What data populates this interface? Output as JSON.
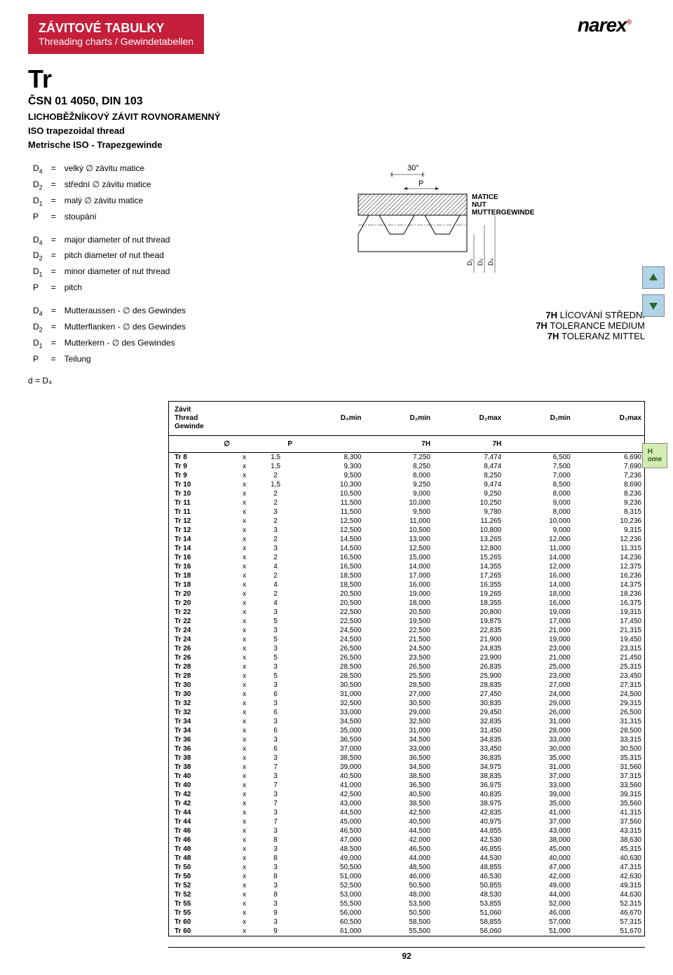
{
  "header": {
    "title1": "ZÁVITOVÉ TABULKY",
    "title2": "Threading charts / Gewindetabellen"
  },
  "logo": "narex",
  "tr": {
    "big": "Tr",
    "std": "ČSN 01 4050, DIN 103",
    "d1": "LICHOBĚŽNÍKOVÝ ZÁVIT ROVNORAMENNÝ",
    "d2": "ISO trapezoidal thread",
    "d3": "Metrische ISO - Trapezgewinde"
  },
  "defs": {
    "cz": [
      [
        "D",
        "4",
        "=",
        "velký ∅ závitu matice"
      ],
      [
        "D",
        "2",
        "=",
        "střední ∅ závitu matice"
      ],
      [
        "D",
        "1",
        "=",
        "malý ∅ závitu matice"
      ],
      [
        "P",
        "",
        "=",
        "stoupání"
      ]
    ],
    "en": [
      [
        "D",
        "4",
        "=",
        "major diameter of nut thread"
      ],
      [
        "D",
        "2",
        "=",
        "pitch diameter of nut thead"
      ],
      [
        "D",
        "1",
        "=",
        "minor diameter of nut thread"
      ],
      [
        "P",
        "",
        "=",
        "pitch"
      ]
    ],
    "de": [
      [
        "D",
        "4",
        "=",
        "Mutteraussen - ∅ des Gewindes"
      ],
      [
        "D",
        "2",
        "=",
        "Mutterflanken - ∅ des Gewindes"
      ],
      [
        "D",
        "1",
        "=",
        "Mutterkern - ∅ des Gewindes"
      ],
      [
        "P",
        "",
        "=",
        "Teilung"
      ]
    ],
    "last": "d = D₄"
  },
  "diag": {
    "angle": "30°",
    "pitch": "P",
    "l1": "MATICE",
    "l2": "NUT",
    "l3": "MUTTERGEWINDE",
    "dims": [
      "D₁",
      "D₂",
      "D₄"
    ]
  },
  "tol": {
    "l1": "7H LÍCOVÁNÍ STŘEDNÍ",
    "l2": "7H TOLERANCE MEDIUM",
    "l3": "7H TOLERANZ MITTEL"
  },
  "table": {
    "h1": "Závit\nThread\nGewinde",
    "cols": [
      "D₄min",
      "D₂min",
      "D₂max",
      "D₁min",
      "D₁max"
    ],
    "sub": [
      "∅",
      "P",
      "",
      "7H",
      "7H",
      "",
      ""
    ],
    "rows": [
      [
        "Tr 8",
        "x",
        "1,5",
        "8,300",
        "7,250",
        "7,474",
        "6,500",
        "6,690"
      ],
      [
        "Tr 9",
        "x",
        "1,5",
        "9,300",
        "8,250",
        "8,474",
        "7,500",
        "7,690"
      ],
      [
        "Tr 9",
        "x",
        "2",
        "9,500",
        "8,000",
        "8,250",
        "7,000",
        "7,236"
      ],
      [
        "Tr 10",
        "x",
        "1,5",
        "10,300",
        "9,250",
        "9,474",
        "8,500",
        "8,690"
      ],
      [
        "Tr 10",
        "x",
        "2",
        "10,500",
        "9,000",
        "9,250",
        "8,000",
        "8,236"
      ],
      [
        "Tr 11",
        "x",
        "2",
        "11,500",
        "10,000",
        "10,250",
        "9,000",
        "9,236"
      ],
      [
        "Tr 11",
        "x",
        "3",
        "11,500",
        "9,500",
        "9,780",
        "8,000",
        "8,315"
      ],
      [
        "Tr 12",
        "x",
        "2",
        "12,500",
        "11,000",
        "11,265",
        "10,000",
        "10,236"
      ],
      [
        "Tr 12",
        "x",
        "3",
        "12,500",
        "10,500",
        "10,800",
        "9,000",
        "9,315"
      ],
      [
        "Tr 14",
        "x",
        "2",
        "14,500",
        "13,000",
        "13,265",
        "12,000",
        "12,236"
      ],
      [
        "Tr 14",
        "x",
        "3",
        "14,500",
        "12,500",
        "12,800",
        "11,000",
        "11,315"
      ],
      [
        "Tr 16",
        "x",
        "2",
        "16,500",
        "15,000",
        "15,265",
        "14,000",
        "14,236"
      ],
      [
        "Tr 16",
        "x",
        "4",
        "16,500",
        "14,000",
        "14,355",
        "12,000",
        "12,375"
      ],
      [
        "Tr 18",
        "x",
        "2",
        "18,500",
        "17,000",
        "17,265",
        "16,000",
        "16,236"
      ],
      [
        "Tr 18",
        "x",
        "4",
        "18,500",
        "16,000",
        "16,355",
        "14,000",
        "14,375"
      ],
      [
        "Tr 20",
        "x",
        "2",
        "20,500",
        "19,000",
        "19,265",
        "18,000",
        "18,236"
      ],
      [
        "Tr 20",
        "x",
        "4",
        "20,500",
        "18,000",
        "18,355",
        "16,000",
        "16,375"
      ],
      [
        "Tr 22",
        "x",
        "3",
        "22,500",
        "20,500",
        "20,800",
        "19,000",
        "19,315"
      ],
      [
        "Tr 22",
        "x",
        "5",
        "22,500",
        "19,500",
        "19,875",
        "17,000",
        "17,450"
      ],
      [
        "Tr 24",
        "x",
        "3",
        "24,500",
        "22,500",
        "22,835",
        "21,000",
        "21,315"
      ],
      [
        "Tr 24",
        "x",
        "5",
        "24,500",
        "21,500",
        "21,900",
        "19,000",
        "19,450"
      ],
      [
        "Tr 26",
        "x",
        "3",
        "26,500",
        "24,500",
        "24,835",
        "23,000",
        "23,315"
      ],
      [
        "Tr 26",
        "x",
        "5",
        "26,500",
        "23,500",
        "23,900",
        "21,000",
        "21,450"
      ],
      [
        "Tr 28",
        "x",
        "3",
        "28,500",
        "26,500",
        "26,835",
        "25,000",
        "25,315"
      ],
      [
        "Tr 28",
        "x",
        "5",
        "28,500",
        "25,500",
        "25,900",
        "23,000",
        "23,450"
      ],
      [
        "Tr 30",
        "x",
        "3",
        "30,500",
        "28,500",
        "28,835",
        "27,000",
        "27,315"
      ],
      [
        "Tr 30",
        "x",
        "6",
        "31,000",
        "27,000",
        "27,450",
        "24,000",
        "24,500"
      ],
      [
        "Tr 32",
        "x",
        "3",
        "32,500",
        "30,500",
        "30,835",
        "29,000",
        "29,315"
      ],
      [
        "Tr 32",
        "x",
        "6",
        "33,000",
        "29,000",
        "29,450",
        "26,000",
        "26,500"
      ],
      [
        "Tr 34",
        "x",
        "3",
        "34,500",
        "32,500",
        "32,835",
        "31,000",
        "31,315"
      ],
      [
        "Tr 34",
        "x",
        "6",
        "35,000",
        "31,000",
        "31,450",
        "28,000",
        "28,500"
      ],
      [
        "Tr 36",
        "x",
        "3",
        "36,500",
        "34,500",
        "34,835",
        "33,000",
        "33,315"
      ],
      [
        "Tr 36",
        "x",
        "6",
        "37,000",
        "33,000",
        "33,450",
        "30,000",
        "30,500"
      ],
      [
        "Tr 38",
        "x",
        "3",
        "38,500",
        "36,500",
        "36,835",
        "35,000",
        "35,315"
      ],
      [
        "Tr 38",
        "x",
        "7",
        "39,000",
        "34,500",
        "34,975",
        "31,000",
        "31,560"
      ],
      [
        "Tr 40",
        "x",
        "3",
        "40,500",
        "38,500",
        "38,835",
        "37,000",
        "37,315"
      ],
      [
        "Tr 40",
        "x",
        "7",
        "41,000",
        "36,500",
        "36,975",
        "33,000",
        "33,560"
      ],
      [
        "Tr 42",
        "x",
        "3",
        "42,500",
        "40,500",
        "40,835",
        "39,000",
        "39,315"
      ],
      [
        "Tr 42",
        "x",
        "7",
        "43,000",
        "38,500",
        "38,975",
        "35,000",
        "35,560"
      ],
      [
        "Tr 44",
        "x",
        "3",
        "44,500",
        "42,500",
        "42,835",
        "41,000",
        "41,315"
      ],
      [
        "Tr 44",
        "x",
        "7",
        "45,000",
        "40,500",
        "40,975",
        "37,000",
        "37,560"
      ],
      [
        "Tr 46",
        "x",
        "3",
        "46,500",
        "44,500",
        "44,855",
        "43,000",
        "43,315"
      ],
      [
        "Tr 46",
        "x",
        "8",
        "47,000",
        "42,000",
        "42,530",
        "38,000",
        "38,630"
      ],
      [
        "Tr 48",
        "x",
        "3",
        "48,500",
        "46,500",
        "46,855",
        "45,000",
        "45,315"
      ],
      [
        "Tr 48",
        "x",
        "8",
        "49,000",
        "44,000",
        "44,530",
        "40,000",
        "40,630"
      ],
      [
        "Tr 50",
        "x",
        "3",
        "50,500",
        "48,500",
        "48,855",
        "47,000",
        "47,315"
      ],
      [
        "Tr 50",
        "x",
        "8",
        "51,000",
        "46,000",
        "46,530",
        "42,000",
        "42,630"
      ],
      [
        "Tr 52",
        "x",
        "3",
        "52,500",
        "50,500",
        "50,855",
        "49,000",
        "49,315"
      ],
      [
        "Tr 52",
        "x",
        "8",
        "53,000",
        "48,000",
        "48,530",
        "44,000",
        "44,630"
      ],
      [
        "Tr 55",
        "x",
        "3",
        "55,500",
        "53,500",
        "53,855",
        "52,000",
        "52,315"
      ],
      [
        "Tr 55",
        "x",
        "9",
        "56,000",
        "50,500",
        "51,060",
        "46,000",
        "46,670"
      ],
      [
        "Tr 60",
        "x",
        "3",
        "60,500",
        "58,500",
        "58,855",
        "57,000",
        "57,315"
      ],
      [
        "Tr 60",
        "x",
        "9",
        "61,000",
        "55,500",
        "56,060",
        "51,000",
        "51,670"
      ]
    ]
  },
  "page": "92",
  "colors": {
    "red": "#c41e3a",
    "hatch": "#999"
  }
}
